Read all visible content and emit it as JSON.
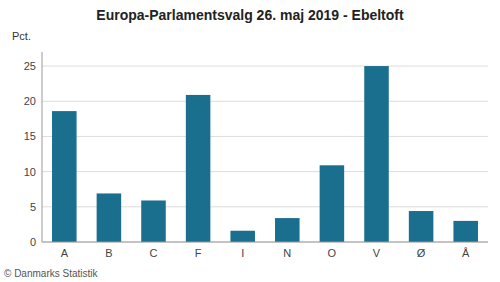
{
  "chart_data": {
    "type": "bar",
    "title": "Europa-Parlamentsvalg 26. maj 2019 - Ebeltoft",
    "ylabel": "Pct.",
    "categories": [
      "A",
      "B",
      "C",
      "F",
      "I",
      "N",
      "O",
      "V",
      "Ø",
      "Å"
    ],
    "values": [
      18.6,
      6.9,
      5.9,
      20.9,
      1.6,
      3.4,
      10.9,
      25.0,
      4.4,
      3.0
    ],
    "color": "#1a6e8e",
    "ylim": [
      0,
      27
    ],
    "yticks": [
      0,
      5,
      10,
      15,
      20,
      25
    ],
    "grid": true,
    "annotations": [
      "© Danmarks Statistik"
    ]
  }
}
